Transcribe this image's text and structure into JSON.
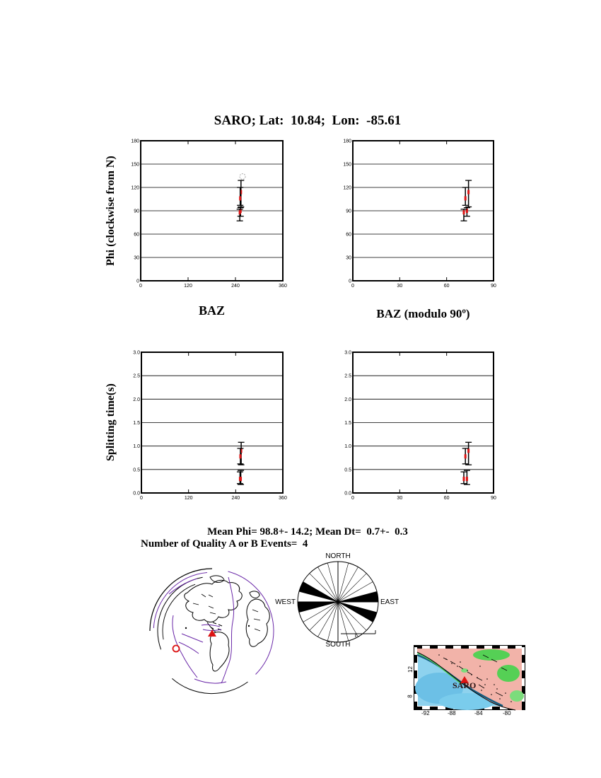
{
  "title": "SARO; Lat:  10.84;  Lon:  -85.61",
  "labels": {
    "phi_axis": "Phi (clockwise from N)",
    "dt_axis": "Splitting time(s)",
    "baz": "BAZ",
    "baz_mod": "BAZ (modulo 90º)"
  },
  "summary": {
    "line1": "Mean Phi= 98.8+- 14.2; Mean Dt=  0.7+-  0.3",
    "line2": "Number of Quality A or B Events=  4"
  },
  "colors": {
    "point_red": "#dc1414",
    "null_gray": "#a8a8a8",
    "plate_purple": "#6a28a8",
    "ocean_blue": "#8ed2ee",
    "land_pink": "#f2b3a9",
    "lowland_green": "#55d055",
    "trench_blue": "#145c80",
    "map_station_text": "#2a1010"
  },
  "chart_data": [
    {
      "type": "scatter",
      "title": "Phi vs BAZ",
      "xlabel": "BAZ",
      "ylabel": "Phi (clockwise from N)",
      "xlim": [
        0,
        360
      ],
      "ylim": [
        0,
        180
      ],
      "xticks": [
        0,
        120,
        240,
        360
      ],
      "xtick_labels": [
        "0",
        "120",
        "240",
        "360"
      ],
      "yticks": [
        0,
        30,
        60,
        90,
        120,
        150,
        180
      ],
      "ytick_labels": [
        "0",
        "30",
        "60",
        "90",
        "120",
        "150",
        "180"
      ],
      "grid": "horizontal",
      "points": [
        {
          "x": 254,
          "y": 114,
          "lo": 95,
          "hi": 129
        },
        {
          "x": 252,
          "y": 106,
          "lo": 97,
          "hi": 120
        },
        {
          "x": 253,
          "y": 90,
          "lo": 83,
          "hi": 94
        },
        {
          "x": 251,
          "y": 88,
          "lo": 77,
          "hi": 92
        }
      ],
      "nulls": [
        {
          "x": 258,
          "y": 134
        }
      ]
    },
    {
      "type": "scatter",
      "title": "Phi vs BAZ modulo 90",
      "xlabel": "BAZ (modulo 90º)",
      "ylabel": "Phi (clockwise from N)",
      "xlim": [
        0,
        90
      ],
      "ylim": [
        0,
        180
      ],
      "xticks": [
        0,
        30,
        60,
        90
      ],
      "xtick_labels": [
        "0",
        "30",
        "60",
        "90"
      ],
      "yticks": [
        0,
        30,
        60,
        90,
        120,
        150,
        180
      ],
      "ytick_labels": [
        "0",
        "30",
        "60",
        "90",
        "120",
        "150",
        "180"
      ],
      "grid": "horizontal",
      "points": [
        {
          "x": 74,
          "y": 114,
          "lo": 95,
          "hi": 129
        },
        {
          "x": 72,
          "y": 106,
          "lo": 97,
          "hi": 120
        },
        {
          "x": 73,
          "y": 90,
          "lo": 83,
          "hi": 94
        },
        {
          "x": 71,
          "y": 88,
          "lo": 77,
          "hi": 92
        }
      ],
      "nulls": []
    },
    {
      "type": "scatter",
      "title": "Splitting time vs BAZ",
      "xlabel": "BAZ",
      "ylabel": "Splitting time(s)",
      "xlim": [
        0,
        360
      ],
      "ylim": [
        0,
        3
      ],
      "xticks": [
        0,
        120,
        240,
        360
      ],
      "xtick_labels": [
        "0",
        "120",
        "240",
        "360"
      ],
      "yticks": [
        0,
        0.5,
        1.0,
        1.5,
        2.0,
        2.5,
        3.0
      ],
      "ytick_labels": [
        "0.0",
        "0.5",
        "1.0",
        "1.5",
        "2.0",
        "2.5",
        "3.0"
      ],
      "grid": "horizontal",
      "points": [
        {
          "x": 254,
          "y": 0.9,
          "lo": 0.6,
          "hi": 1.08
        },
        {
          "x": 252,
          "y": 0.78,
          "lo": 0.62,
          "hi": 0.95
        },
        {
          "x": 253,
          "y": 0.3,
          "lo": 0.18,
          "hi": 0.48
        },
        {
          "x": 251,
          "y": 0.3,
          "lo": 0.2,
          "hi": 0.45
        }
      ],
      "nulls": []
    },
    {
      "type": "scatter",
      "title": "Splitting time vs BAZ modulo 90",
      "xlabel": "BAZ (modulo 90º)",
      "ylabel": "Splitting time(s)",
      "xlim": [
        0,
        90
      ],
      "ylim": [
        0,
        3
      ],
      "xticks": [
        0,
        30,
        60,
        90
      ],
      "xtick_labels": [
        "0",
        "30",
        "60",
        "90"
      ],
      "yticks": [
        0,
        0.5,
        1.0,
        1.5,
        2.0,
        2.5,
        3.0
      ],
      "ytick_labels": [
        "0.0",
        "0.5",
        "1.0",
        "1.5",
        "2.0",
        "2.5",
        "3.0"
      ],
      "grid": "horizontal",
      "points": [
        {
          "x": 74,
          "y": 0.9,
          "lo": 0.6,
          "hi": 1.08
        },
        {
          "x": 72,
          "y": 0.78,
          "lo": 0.62,
          "hi": 0.95
        },
        {
          "x": 73,
          "y": 0.3,
          "lo": 0.18,
          "hi": 0.48
        },
        {
          "x": 71,
          "y": 0.3,
          "lo": 0.2,
          "hi": 0.45
        }
      ],
      "nulls": []
    }
  ],
  "rose": {
    "type": "rose",
    "sector_deg": 15,
    "filled_sectors": [
      {
        "from": 75,
        "to": 90
      },
      {
        "from": 105,
        "to": 120
      },
      {
        "from": 255,
        "to": 270
      },
      {
        "from": 285,
        "to": 300
      }
    ],
    "labels": {
      "north": "NORTH",
      "south": "SOUTH",
      "east": "EAST",
      "west": "WEST"
    }
  },
  "station_map": {
    "station_label": "SARO",
    "xtick_labels": [
      "-92",
      "-88",
      "-84",
      "-80"
    ],
    "ytick_labels": [
      "12",
      "8"
    ]
  }
}
